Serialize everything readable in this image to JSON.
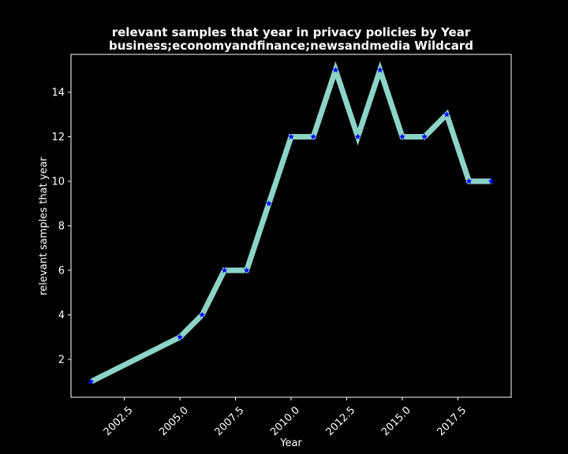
{
  "chart_data": {
    "type": "line",
    "title": "relevant samples that year in privacy policies by Year",
    "subtitle": "business;economyandfinance;newsandmedia Wildcard",
    "xlabel": "Year",
    "ylabel": "relevant samples that year",
    "xlim": [
      2000.1,
      2019.9
    ],
    "ylim": [
      0.3,
      15.7
    ],
    "xticks": [
      2002.5,
      2005.0,
      2007.5,
      2010.0,
      2012.5,
      2015.0,
      2017.5
    ],
    "xtick_labels": [
      "2002.5",
      "2005.0",
      "2007.5",
      "2010.0",
      "2012.5",
      "2015.0",
      "2017.5"
    ],
    "yticks": [
      2,
      4,
      6,
      8,
      10,
      12,
      14
    ],
    "ytick_labels": [
      "2",
      "4",
      "6",
      "8",
      "10",
      "12",
      "14"
    ],
    "grid": false,
    "series": [
      {
        "x": [
          2001,
          2005,
          2006,
          2007,
          2008,
          2009,
          2010,
          2011,
          2012,
          2013,
          2014,
          2015,
          2016,
          2017,
          2018,
          2019
        ],
        "y": [
          1,
          3,
          4,
          6,
          6,
          9,
          12,
          12,
          15,
          12,
          15,
          12,
          12,
          13,
          10,
          10
        ],
        "line_color": "#8dd3c7",
        "marker": "star",
        "marker_color": "#0000ff"
      }
    ],
    "colors": {
      "background": "#000000",
      "text": "#ffffff",
      "axes": "#ffffff"
    }
  }
}
